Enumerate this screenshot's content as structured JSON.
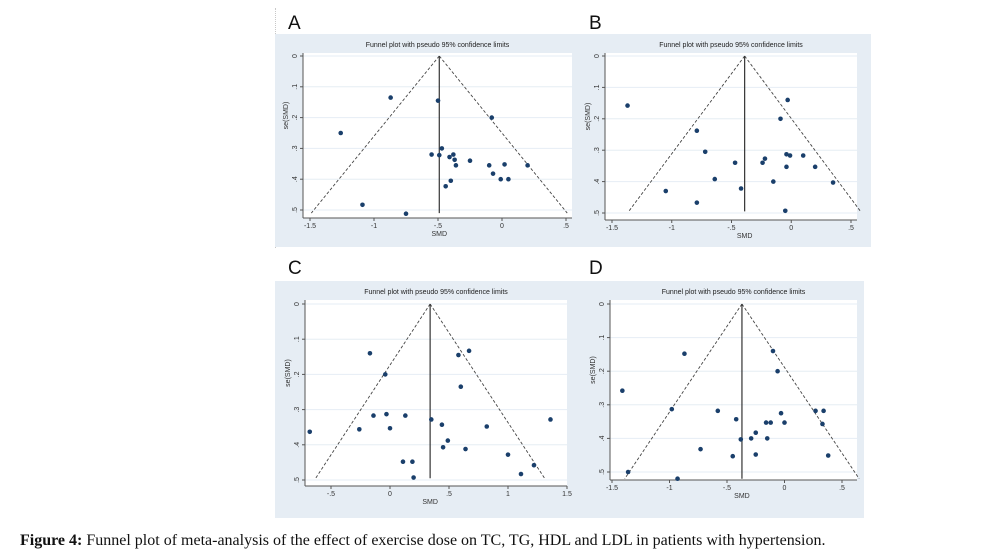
{
  "figure": {
    "caption_label": "Figure 4:",
    "caption_text": " Funnel plot of meta-analysis of the effect of exercise dose on TC, TG, HDL and LDL in patients with hypertension."
  },
  "chart_data": [
    {
      "panel": "A",
      "type": "scatter",
      "title": "Funnel plot with pseudo 95% confidence limits",
      "xlabel": "SMD",
      "ylabel": "se(SMD)",
      "xticks": [
        "-1.5",
        "-1",
        "-.5",
        "0",
        ".5"
      ],
      "xtick_values": [
        -1.5,
        -1,
        -0.5,
        0,
        0.5
      ],
      "yticks": [
        "0",
        ".1",
        ".2",
        ".3",
        ".4",
        ".5"
      ],
      "ytick_values": [
        0,
        0.1,
        0.2,
        0.3,
        0.4,
        0.5
      ],
      "xlim": [
        -1.55,
        0.55
      ],
      "ylim": [
        0,
        0.52
      ],
      "y_reversed": true,
      "pooled_smd": -0.49,
      "funnel_se_max": 0.51,
      "points": [
        {
          "x": -0.87,
          "y": 0.135
        },
        {
          "x": -0.5,
          "y": 0.145
        },
        {
          "x": -0.08,
          "y": 0.2
        },
        {
          "x": -1.26,
          "y": 0.25
        },
        {
          "x": -0.47,
          "y": 0.3
        },
        {
          "x": -0.55,
          "y": 0.32
        },
        {
          "x": -0.49,
          "y": 0.322
        },
        {
          "x": -0.41,
          "y": 0.328
        },
        {
          "x": -0.38,
          "y": 0.32
        },
        {
          "x": -0.37,
          "y": 0.337
        },
        {
          "x": -0.36,
          "y": 0.355
        },
        {
          "x": -0.25,
          "y": 0.34
        },
        {
          "x": -0.1,
          "y": 0.355
        },
        {
          "x": 0.02,
          "y": 0.352
        },
        {
          "x": 0.2,
          "y": 0.355
        },
        {
          "x": -0.07,
          "y": 0.382
        },
        {
          "x": -0.01,
          "y": 0.4
        },
        {
          "x": 0.05,
          "y": 0.4
        },
        {
          "x": -0.4,
          "y": 0.405
        },
        {
          "x": -0.44,
          "y": 0.423
        },
        {
          "x": -1.09,
          "y": 0.483
        },
        {
          "x": -0.75,
          "y": 0.512
        }
      ]
    },
    {
      "panel": "B",
      "type": "scatter",
      "title": "Funnel plot with pseudo 95% confidence limits",
      "xlabel": "SMD",
      "ylabel": "se(SMD)",
      "xticks": [
        "-1.5",
        "-1",
        "-.5",
        "0",
        ".5"
      ],
      "xtick_values": [
        -1.5,
        -1,
        -0.5,
        0,
        0.5
      ],
      "yticks": [
        "0",
        ".1",
        ".2",
        ".3",
        ".4",
        ".5"
      ],
      "ytick_values": [
        0,
        0.1,
        0.2,
        0.3,
        0.4,
        0.5
      ],
      "xlim": [
        -1.55,
        0.6
      ],
      "ylim": [
        0,
        0.52
      ],
      "y_reversed": true,
      "pooled_smd": -0.39,
      "funnel_se_max": 0.495,
      "points": [
        {
          "x": -1.37,
          "y": 0.158
        },
        {
          "x": -0.03,
          "y": 0.14
        },
        {
          "x": -0.09,
          "y": 0.2
        },
        {
          "x": -0.79,
          "y": 0.238
        },
        {
          "x": -0.72,
          "y": 0.305
        },
        {
          "x": -0.47,
          "y": 0.34
        },
        {
          "x": -0.24,
          "y": 0.34
        },
        {
          "x": -0.22,
          "y": 0.327
        },
        {
          "x": -0.04,
          "y": 0.313
        },
        {
          "x": -0.01,
          "y": 0.317
        },
        {
          "x": 0.1,
          "y": 0.317
        },
        {
          "x": -0.04,
          "y": 0.353
        },
        {
          "x": 0.2,
          "y": 0.353
        },
        {
          "x": -0.64,
          "y": 0.392
        },
        {
          "x": -0.15,
          "y": 0.4
        },
        {
          "x": 0.35,
          "y": 0.403
        },
        {
          "x": -1.05,
          "y": 0.43
        },
        {
          "x": -0.42,
          "y": 0.422
        },
        {
          "x": -0.79,
          "y": 0.467
        },
        {
          "x": -0.05,
          "y": 0.493
        }
      ]
    },
    {
      "panel": "C",
      "type": "scatter",
      "title": "Funnel plot with pseudo 95% confidence limits",
      "xlabel": "SMD",
      "ylabel": "se(SMD)",
      "xticks": [
        "-.5",
        "0",
        ".5",
        "1",
        "1.5"
      ],
      "xtick_values": [
        -0.5,
        0,
        0.5,
        1,
        1.5
      ],
      "yticks": [
        "0",
        ".1",
        ".2",
        ".3",
        ".4",
        ".5"
      ],
      "ytick_values": [
        0,
        0.1,
        0.2,
        0.3,
        0.4,
        0.5
      ],
      "xlim": [
        -0.72,
        1.52
      ],
      "ylim": [
        0,
        0.51
      ],
      "y_reversed": true,
      "pooled_smd": 0.34,
      "funnel_se_max": 0.495,
      "points": [
        {
          "x": -0.17,
          "y": 0.14
        },
        {
          "x": -0.04,
          "y": 0.2
        },
        {
          "x": 0.58,
          "y": 0.145
        },
        {
          "x": 0.67,
          "y": 0.133
        },
        {
          "x": 0.6,
          "y": 0.235
        },
        {
          "x": -0.14,
          "y": 0.317
        },
        {
          "x": -0.03,
          "y": 0.313
        },
        {
          "x": 0.13,
          "y": 0.317
        },
        {
          "x": 0.35,
          "y": 0.328
        },
        {
          "x": 1.36,
          "y": 0.328
        },
        {
          "x": -0.68,
          "y": 0.363
        },
        {
          "x": -0.26,
          "y": 0.356
        },
        {
          "x": 0.0,
          "y": 0.353
        },
        {
          "x": 0.44,
          "y": 0.343
        },
        {
          "x": 0.82,
          "y": 0.348
        },
        {
          "x": 0.49,
          "y": 0.388
        },
        {
          "x": 0.45,
          "y": 0.407
        },
        {
          "x": 0.64,
          "y": 0.412
        },
        {
          "x": 1.0,
          "y": 0.428
        },
        {
          "x": 0.11,
          "y": 0.448
        },
        {
          "x": 0.19,
          "y": 0.448
        },
        {
          "x": 1.22,
          "y": 0.458
        },
        {
          "x": 1.11,
          "y": 0.483
        },
        {
          "x": 0.2,
          "y": 0.493
        }
      ]
    },
    {
      "panel": "D",
      "type": "scatter",
      "title": "Funnel plot with pseudo 95% confidence limits",
      "xlabel": "SMD",
      "ylabel": "se(SMD)",
      "xticks": [
        "-1.5",
        "-1",
        "-.5",
        "0",
        ".5"
      ],
      "xtick_values": [
        -1.5,
        -1,
        -0.5,
        0,
        0.5
      ],
      "yticks": [
        "0",
        ".1",
        ".2",
        ".3",
        ".4",
        ".5"
      ],
      "ytick_values": [
        0,
        0.1,
        0.2,
        0.3,
        0.4,
        0.5
      ],
      "xlim": [
        -1.53,
        0.68
      ],
      "ylim": [
        0,
        0.53
      ],
      "y_reversed": true,
      "pooled_smd": -0.37,
      "funnel_se_max": 0.52,
      "points": [
        {
          "x": -0.87,
          "y": 0.148
        },
        {
          "x": -0.1,
          "y": 0.14
        },
        {
          "x": -0.06,
          "y": 0.2
        },
        {
          "x": -1.41,
          "y": 0.258
        },
        {
          "x": -0.98,
          "y": 0.313
        },
        {
          "x": -0.58,
          "y": 0.318
        },
        {
          "x": -0.42,
          "y": 0.343
        },
        {
          "x": -0.03,
          "y": 0.325
        },
        {
          "x": 0.27,
          "y": 0.318
        },
        {
          "x": 0.34,
          "y": 0.318
        },
        {
          "x": -0.16,
          "y": 0.353
        },
        {
          "x": -0.12,
          "y": 0.353
        },
        {
          "x": 0.0,
          "y": 0.353
        },
        {
          "x": 0.33,
          "y": 0.357
        },
        {
          "x": -0.25,
          "y": 0.383
        },
        {
          "x": -0.38,
          "y": 0.403
        },
        {
          "x": -0.29,
          "y": 0.4
        },
        {
          "x": -0.15,
          "y": 0.4
        },
        {
          "x": -0.73,
          "y": 0.432
        },
        {
          "x": -0.45,
          "y": 0.453
        },
        {
          "x": -0.25,
          "y": 0.448
        },
        {
          "x": 0.38,
          "y": 0.451
        },
        {
          "x": -1.36,
          "y": 0.5
        },
        {
          "x": -0.93,
          "y": 0.52
        }
      ]
    }
  ]
}
